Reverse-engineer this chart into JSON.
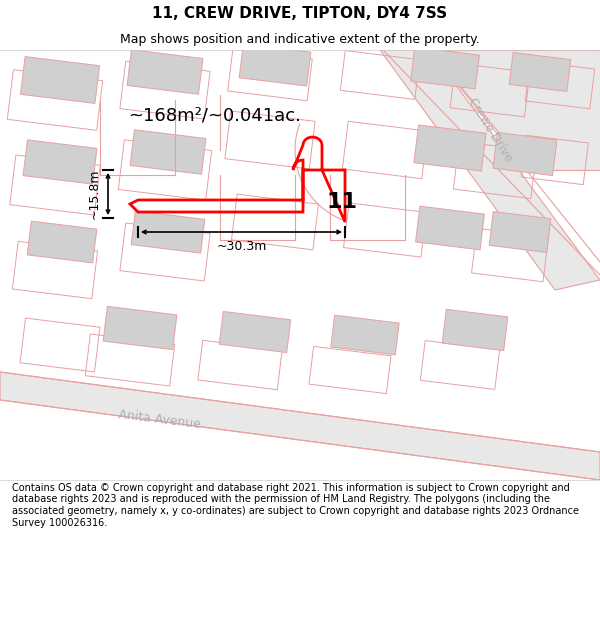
{
  "title": "11, CREW DRIVE, TIPTON, DY4 7SS",
  "subtitle": "Map shows position and indicative extent of the property.",
  "footer": "Contains OS data © Crown copyright and database right 2021. This information is subject to Crown copyright and database rights 2023 and is reproduced with the permission of HM Land Registry. The polygons (including the associated geometry, namely x, y co-ordinates) are subject to Crown copyright and database rights 2023 Ordnance Survey 100026316.",
  "area_label": "~168m²/~0.041ac.",
  "width_label": "~30.3m",
  "height_label": "~15.8m",
  "number_label": "11",
  "bg_color": "#f0f0f0",
  "building_color": "#d0d0d0",
  "plot_color": "#ff0000",
  "map_line_color": "#e8a0a0",
  "street_label_crewe": "Crewe Drive",
  "street_label_anita": "Anita Avenue",
  "title_fontsize": 11,
  "subtitle_fontsize": 9,
  "footer_fontsize": 7
}
